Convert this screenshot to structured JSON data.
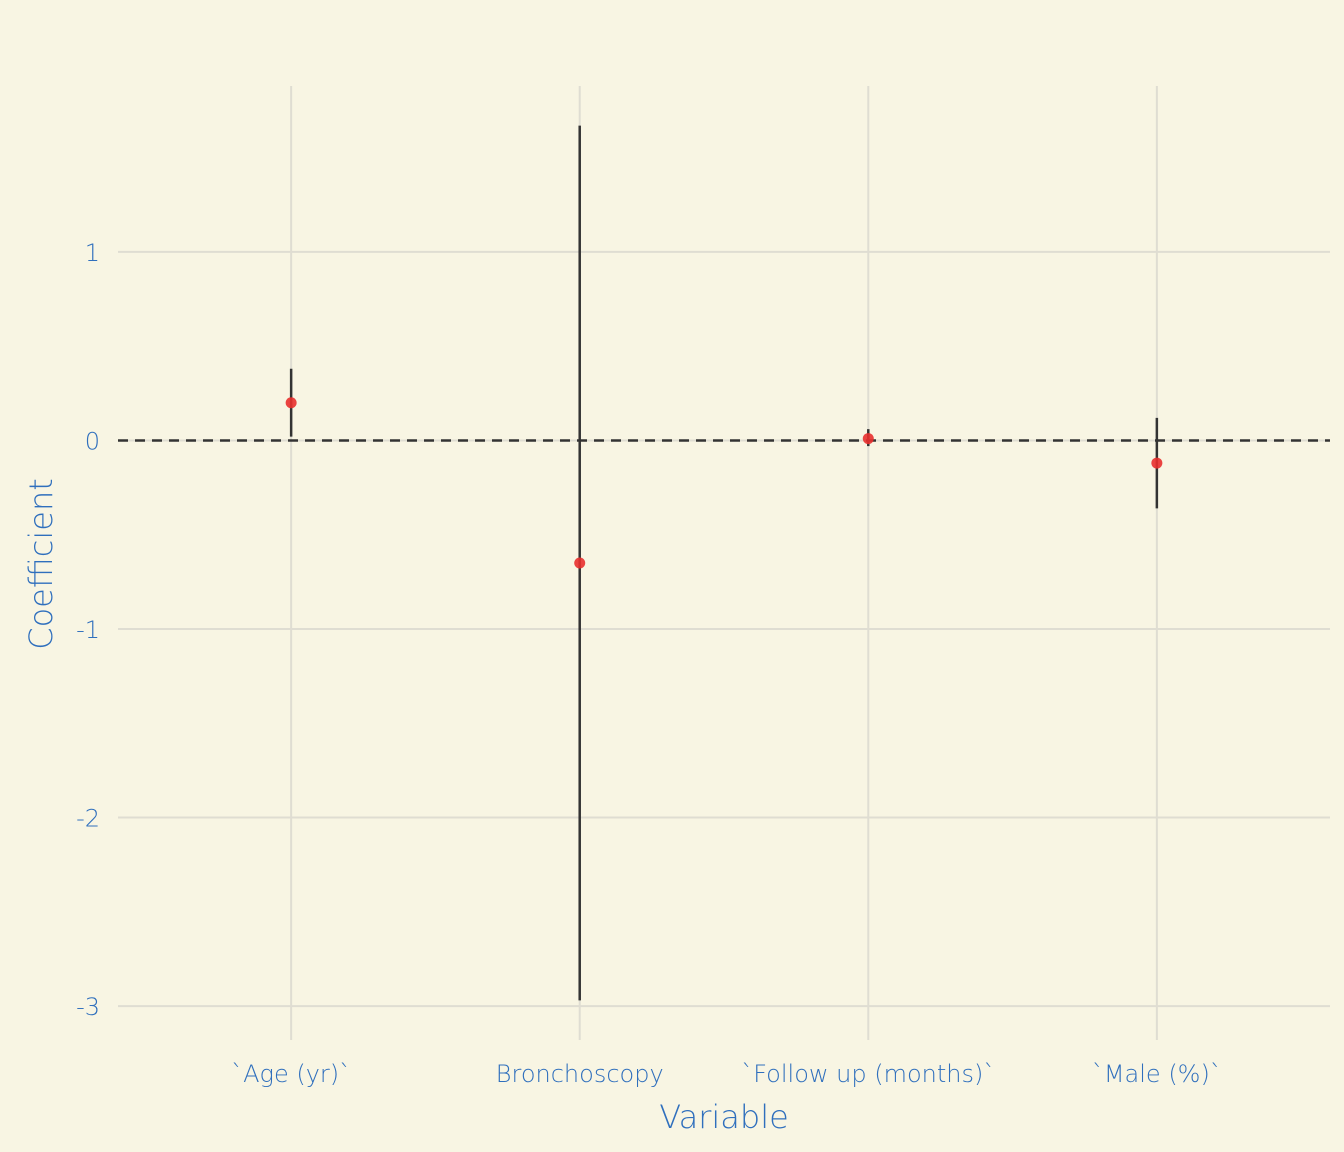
{
  "chart_data": {
    "type": "scatter",
    "subtype": "coefficient-plot-with-error-bars",
    "xlabel": "Variable",
    "ylabel": "Coefficient",
    "categories": [
      "`Age (yr)`",
      "Bronchoscopy",
      "`Follow up (months)`",
      "`Male (%)`"
    ],
    "points": [
      {
        "category": "`Age (yr)`",
        "estimate": 0.2,
        "lower": 0.02,
        "upper": 0.38
      },
      {
        "category": "Bronchoscopy",
        "estimate": -0.65,
        "lower": -2.97,
        "upper": 1.67
      },
      {
        "category": "`Follow up (months)`",
        "estimate": 0.01,
        "lower": -0.03,
        "upper": 0.06
      },
      {
        "category": "`Male (%)`",
        "estimate": -0.12,
        "lower": -0.36,
        "upper": 0.12
      }
    ],
    "reference_line": {
      "y": 0,
      "style": "dashed"
    },
    "yticks": [
      -3,
      -2,
      -1,
      0,
      1
    ],
    "ytick_labels": [
      "-3",
      "-2",
      "-1",
      "0",
      "1"
    ],
    "ylim": [
      -3.18,
      1.88
    ],
    "grid": true,
    "legend": "none",
    "colors": {
      "background": "#f8f5e3",
      "grid": "#dfddd2",
      "point": "#e8302d",
      "errorbar": "#333333",
      "reference_line": "#333333",
      "text": "#2f6fbd"
    }
  }
}
